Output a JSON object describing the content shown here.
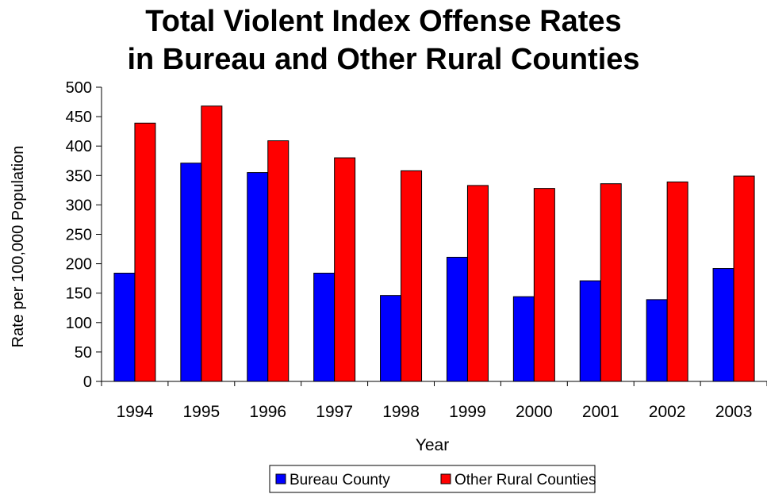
{
  "chart_data": {
    "type": "bar",
    "title": [
      "Total Violent Index Offense Rates",
      "in Bureau and Other Rural Counties"
    ],
    "xlabel": "Year",
    "ylabel": "Rate per 100,000 Population",
    "categories": [
      "1994",
      "1995",
      "1996",
      "1997",
      "1998",
      "1999",
      "2000",
      "2001",
      "2002",
      "2003"
    ],
    "ylim": [
      0,
      500
    ],
    "yticks": [
      "0",
      "50",
      "100",
      "150",
      "200",
      "250",
      "300",
      "350",
      "400",
      "450",
      "500"
    ],
    "grid": false,
    "legend_position": "bottom",
    "series": [
      {
        "name": "Bureau County",
        "color": "#0000ff",
        "values": [
          184,
          371,
          355,
          184,
          146,
          211,
          144,
          171,
          139,
          192
        ]
      },
      {
        "name": "Other Rural Counties",
        "color": "#ff0000",
        "values": [
          439,
          468,
          409,
          380,
          358,
          333,
          328,
          336,
          339,
          349
        ]
      }
    ]
  }
}
